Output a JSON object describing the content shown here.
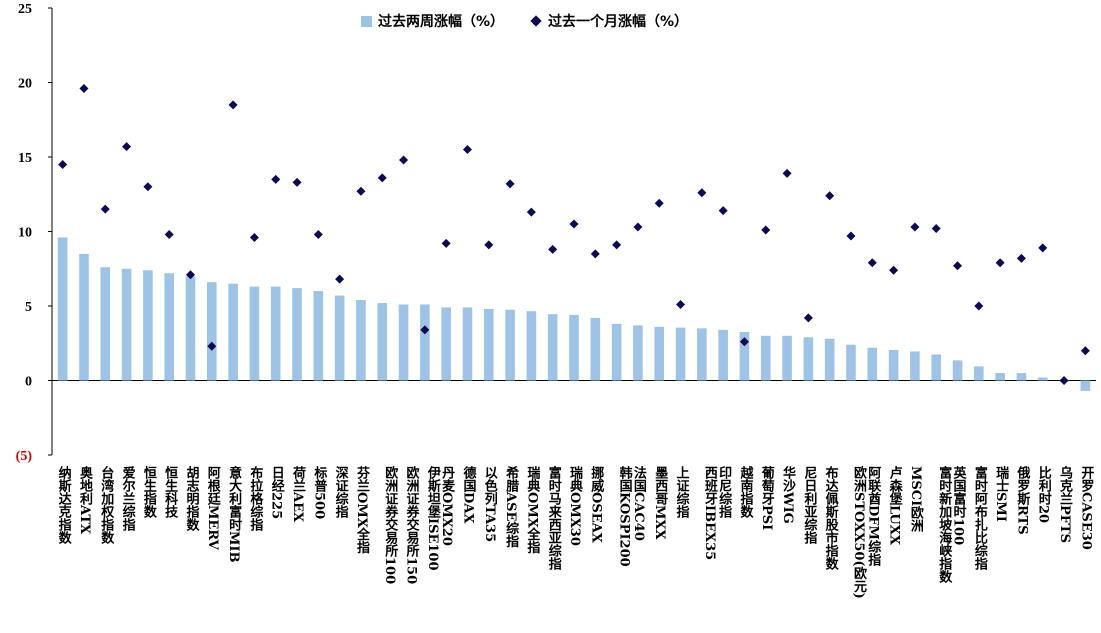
{
  "chart_data": {
    "type": "bar",
    "colors": {
      "bar": "#9dc3e6",
      "marker": "#0a0a55"
    },
    "ylim": [
      -5,
      25
    ],
    "yticks": [
      {
        "value": 25,
        "label": "25"
      },
      {
        "value": 20,
        "label": "20"
      },
      {
        "value": 15,
        "label": "15"
      },
      {
        "value": 10,
        "label": "10"
      },
      {
        "value": 5,
        "label": "5"
      },
      {
        "value": 0,
        "label": "0"
      },
      {
        "value": -5,
        "label": "(5)"
      }
    ],
    "legend": {
      "position": "top-center"
    },
    "categories": [
      "纳斯达克指数",
      "奥地利ATX",
      "台湾加权指数",
      "爱尔兰综指",
      "恒生指数",
      "恒生科技",
      "胡志明指数",
      "阿根廷MERV",
      "意大利富时MIB",
      "布拉格综指",
      "日经225",
      "荷兰AEX",
      "标普500",
      "深证综指",
      "芬兰OMX全指",
      "欧洲证券交易所100",
      "欧洲证券交易所150",
      "伊斯坦堡ISE100",
      "丹麦OMX20",
      "德国DAX",
      "以色列TA35",
      "希腊ASE综指",
      "瑞典OMX全指",
      "富时马来西亚综指",
      "瑞典OMX30",
      "挪威OSEAX",
      "韩国KOSPI200",
      "法国CAC40",
      "墨西哥MXX",
      "上证综指",
      "西班牙IBEX35",
      "印尼综指",
      "越南指数",
      "葡萄牙PSI",
      "华沙WIG",
      "尼日利亚综指",
      "布达佩斯股市指数",
      "欧洲STOXX50(欧元)",
      "阿联酋DFM综指",
      "卢森堡LUXX",
      "MSCI欧洲",
      "富时新加坡海峡指数",
      "英国富时100",
      "富时阿布扎比综指",
      "瑞士SMI",
      "俄罗斯RTS",
      "比利时20",
      "乌克兰PFTS",
      "开罗CASE30"
    ],
    "series": [
      {
        "name": "过去两周涨幅（%）",
        "type": "bar",
        "values": [
          9.6,
          8.5,
          7.6,
          7.5,
          7.4,
          7.2,
          7.0,
          6.6,
          6.5,
          6.3,
          6.3,
          6.2,
          6.0,
          5.7,
          5.4,
          5.2,
          5.1,
          5.1,
          4.9,
          4.9,
          4.8,
          4.75,
          4.65,
          4.45,
          4.4,
          4.2,
          3.8,
          3.7,
          3.6,
          3.55,
          3.5,
          3.4,
          3.25,
          3.0,
          3.0,
          2.9,
          2.8,
          2.4,
          2.2,
          2.05,
          1.95,
          1.75,
          1.35,
          0.95,
          0.5,
          0.5,
          0.2,
          -0.1,
          -0.7
        ]
      },
      {
        "name": "过去一个月涨幅（%）",
        "type": "scatter",
        "values": [
          14.5,
          19.6,
          11.5,
          15.7,
          13.0,
          9.8,
          7.1,
          2.3,
          18.5,
          9.6,
          13.5,
          13.3,
          9.8,
          6.8,
          12.7,
          13.6,
          14.8,
          3.4,
          9.2,
          15.5,
          9.1,
          13.2,
          11.3,
          8.8,
          10.5,
          8.5,
          9.1,
          10.3,
          11.9,
          5.1,
          12.6,
          11.4,
          2.6,
          10.1,
          13.9,
          4.2,
          12.4,
          9.7,
          7.9,
          7.4,
          10.3,
          10.2,
          7.7,
          5.0,
          7.9,
          8.2,
          8.9,
          0.0,
          2.0
        ]
      }
    ]
  }
}
